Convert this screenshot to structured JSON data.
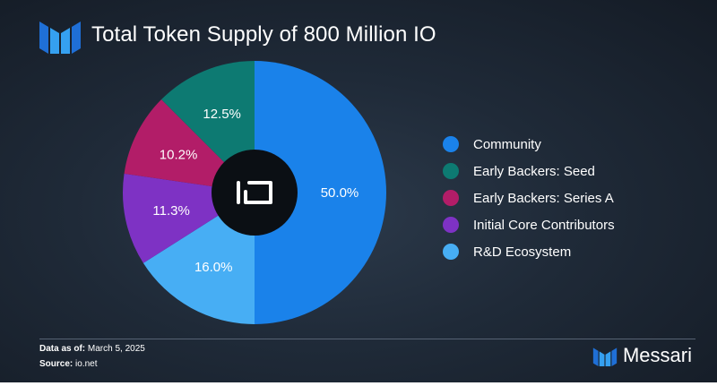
{
  "header": {
    "title": "Total Token Supply of 800 Million IO",
    "logo_icon": "messari-logo-icon"
  },
  "center_logo": {
    "text": "IO",
    "icon": "io-net-logo-icon"
  },
  "chart_data": {
    "type": "pie",
    "donut": true,
    "slices": [
      {
        "label": "Community",
        "value": 50.0,
        "display": "50.0%",
        "color": "#1a82ea"
      },
      {
        "label": "R&D Ecosystem",
        "value": 16.0,
        "display": "16.0%",
        "color": "#47aef4"
      },
      {
        "label": "Initial Core Contributors",
        "value": 11.3,
        "display": "11.3%",
        "color": "#7e32c4"
      },
      {
        "label": "Early Backers: Series A",
        "value": 10.2,
        "display": "10.2%",
        "color": "#b21d68"
      },
      {
        "label": "Early Backers: Seed",
        "value": 12.5,
        "display": "12.5%",
        "color": "#0d7a72"
      }
    ],
    "legend": [
      {
        "label": "Community",
        "color": "#1a82ea"
      },
      {
        "label": "Early Backers: Seed",
        "color": "#0d7a72"
      },
      {
        "label": "Early Backers: Series A",
        "color": "#b21d68"
      },
      {
        "label": "Initial Core Contributors",
        "color": "#7e32c4"
      },
      {
        "label": "R&D Ecosystem",
        "color": "#47aef4"
      }
    ],
    "legend_position": "right"
  },
  "footer": {
    "date_label": "Data as of:",
    "date_value": "March 5, 2025",
    "source_label": "Source:",
    "source_value": "io.net"
  },
  "brand": {
    "name": "Messari",
    "icon": "messari-logo-icon"
  }
}
